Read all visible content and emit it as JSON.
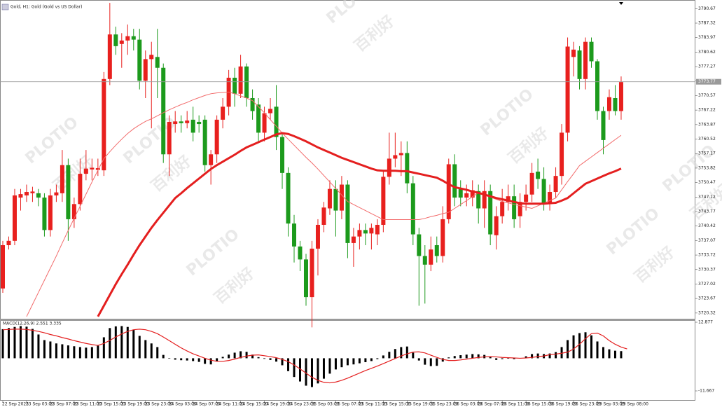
{
  "chart_data": [
    {
      "type": "candlestick",
      "title": "Gold, H1:  Gold (Gold vs US Dollar)",
      "watermark": [
        "PLOTIO",
        "百利好"
      ],
      "up_color": "#e8201e",
      "down_color": "#1c9a1c",
      "ylim": [
        3719,
        3792.34
      ],
      "yticks": [
        3790.67,
        3787.32,
        3783.97,
        3780.62,
        3777.27,
        3773.92,
        3770.57,
        3767.22,
        3763.87,
        3760.52,
        3757.17,
        3753.82,
        3750.47,
        3747.12,
        3743.77,
        3740.42,
        3737.07,
        3733.72,
        3730.37,
        3727.02,
        3723.67,
        3720.32
      ],
      "current_price": 3773.77,
      "categories": [
        "22 Sep 2025",
        null,
        null,
        null,
        "23 Sep 03:00",
        null,
        null,
        null,
        "23 Sep 07:00",
        null,
        null,
        null,
        "23 Sep 11:00",
        null,
        null,
        null,
        "23 Sep 15:00",
        null,
        null,
        null,
        "23 Sep 19:00",
        null,
        null,
        null,
        "23 Sep 23:00",
        null,
        null,
        null,
        "24 Sep 03:00",
        null,
        null,
        null,
        "24 Sep 07:00",
        null,
        null,
        null,
        "24 Sep 11:00",
        null,
        null,
        null,
        "24 Sep 15:00",
        null,
        null,
        null,
        "24 Sep 19:00",
        null,
        null,
        null,
        "24 Sep 23:00",
        null,
        null,
        null,
        "25 Sep 03:00",
        null,
        null,
        null,
        "25 Sep 07:00",
        null,
        null,
        null,
        "25 Sep 11:00",
        null,
        null,
        null,
        "25 Sep 15:00",
        null,
        null,
        null,
        "25 Sep 19:00",
        null,
        null,
        null,
        "25 Sep 23:00",
        null,
        null,
        null,
        "26 Sep 03:00",
        null,
        null,
        null,
        "26 Sep 07:00",
        null,
        null,
        null,
        "26 Sep 11:00",
        null,
        null,
        null,
        "26 Sep 15:00",
        null,
        null,
        null,
        "26 Sep 19:00",
        null,
        null,
        null,
        "26 Sep 23:00",
        null,
        null,
        null,
        "29 Sep 03:00",
        null,
        null,
        null,
        "29 Sep 08:00"
      ],
      "ohlc": [
        [
          3726,
          3737,
          3725,
          3736
        ],
        [
          3736,
          3738,
          3735,
          3737
        ],
        [
          3737,
          3749,
          3736,
          3747.5
        ],
        [
          3747,
          3749,
          3744,
          3747.8
        ],
        [
          3747.5,
          3750,
          3746,
          3748.3
        ],
        [
          3748,
          3749.5,
          3746,
          3748.4
        ],
        [
          3748,
          3749,
          3745,
          3747
        ],
        [
          3747,
          3748,
          3738,
          3739.5
        ],
        [
          3739.5,
          3749,
          3738,
          3747.5
        ],
        [
          3747.5,
          3750,
          3746,
          3748.2
        ],
        [
          3748,
          3758,
          3746,
          3754.5
        ],
        [
          3754.5,
          3756,
          3737,
          3742
        ],
        [
          3742,
          3747,
          3740,
          3745.5
        ],
        [
          3745.5,
          3756,
          3744,
          3752.5
        ],
        [
          3752.5,
          3758,
          3751,
          3753.7
        ],
        [
          3753.5,
          3756,
          3751,
          3753.9
        ],
        [
          3753.4,
          3756,
          3752,
          3753.8
        ],
        [
          3753.3,
          3776,
          3752,
          3774.4
        ],
        [
          3774.4,
          3792,
          3773,
          3784.7
        ],
        [
          3784.7,
          3786.5,
          3780,
          3782
        ],
        [
          3782.5,
          3785,
          3777,
          3783.3
        ],
        [
          3783.3,
          3787,
          3780,
          3784.3
        ],
        [
          3784.3,
          3786,
          3781,
          3783.5
        ],
        [
          3783.5,
          3786,
          3772,
          3774
        ],
        [
          3774,
          3781,
          3770,
          3779
        ],
        [
          3779,
          3783,
          3763,
          3780
        ],
        [
          3779.5,
          3786,
          3770,
          3777
        ],
        [
          3777,
          3778,
          3755,
          3757
        ],
        [
          3757,
          3766,
          3752,
          3764.5
        ],
        [
          3764,
          3767,
          3762,
          3764.6
        ],
        [
          3764.6,
          3766,
          3762,
          3764.2
        ],
        [
          3764.2,
          3767,
          3763,
          3764.8
        ],
        [
          3765,
          3768,
          3760,
          3762
        ],
        [
          3764.5,
          3766,
          3762,
          3764
        ],
        [
          3765,
          3766,
          3753,
          3754.5
        ],
        [
          3754.5,
          3758,
          3750,
          3757
        ],
        [
          3757,
          3766,
          3755,
          3765
        ],
        [
          3765,
          3770,
          3763,
          3768
        ],
        [
          3768,
          3776.5,
          3766,
          3774.7
        ],
        [
          3774.7,
          3777,
          3768,
          3771
        ],
        [
          3771,
          3780,
          3770,
          3777.3
        ],
        [
          3777.3,
          3778,
          3768,
          3770
        ],
        [
          3770,
          3772,
          3765,
          3767
        ],
        [
          3768.5,
          3770,
          3760,
          3762
        ],
        [
          3762,
          3768,
          3760,
          3766.5
        ],
        [
          3766.5,
          3770,
          3765,
          3767.5
        ],
        [
          3768,
          3773,
          3758,
          3761
        ],
        [
          3761,
          3762,
          3749,
          3752.7
        ],
        [
          3752.7,
          3754,
          3738,
          3741
        ],
        [
          3741,
          3743,
          3732,
          3735.7
        ],
        [
          3735.7,
          3737,
          3730,
          3732.7
        ],
        [
          3732.7,
          3734,
          3722,
          3724
        ],
        [
          3724,
          3737,
          3717,
          3735.2
        ],
        [
          3735.2,
          3742,
          3729,
          3740.7
        ],
        [
          3740.7,
          3746,
          3739,
          3744.7
        ],
        [
          3744.5,
          3751,
          3743,
          3749
        ],
        [
          3749,
          3751,
          3738,
          3744
        ],
        [
          3744,
          3752,
          3742,
          3750
        ],
        [
          3750,
          3751,
          3733,
          3736.5
        ],
        [
          3736.5,
          3740,
          3731,
          3738
        ],
        [
          3738,
          3741,
          3735,
          3739.5
        ],
        [
          3739.5,
          3741,
          3736,
          3738.7
        ],
        [
          3738.7,
          3741,
          3735,
          3740
        ],
        [
          3738.5,
          3742,
          3736,
          3740.7
        ],
        [
          3740.7,
          3753,
          3739,
          3751.8
        ],
        [
          3751.8,
          3762,
          3750,
          3756
        ],
        [
          3756,
          3762,
          3754,
          3756.8
        ],
        [
          3756.8,
          3760,
          3752,
          3757.3
        ],
        [
          3757.3,
          3760,
          3748,
          3750.3
        ],
        [
          3750.3,
          3752,
          3736,
          3738.5
        ],
        [
          3738.5,
          3740,
          3722,
          3733.5
        ],
        [
          3733.5,
          3736,
          3722.5,
          3731.5
        ],
        [
          3731.5,
          3738,
          3730,
          3735
        ],
        [
          3736,
          3738,
          3732,
          3733.5
        ],
        [
          3733.5,
          3745,
          3732,
          3742
        ],
        [
          3742,
          3756,
          3741,
          3754.7
        ],
        [
          3754.7,
          3757,
          3745,
          3747
        ],
        [
          3749,
          3751,
          3745,
          3747
        ],
        [
          3747,
          3750,
          3745,
          3748
        ],
        [
          3747,
          3751,
          3745,
          3748.7
        ],
        [
          3748.5,
          3750,
          3741,
          3744.5
        ],
        [
          3744.5,
          3751,
          3740,
          3748.5
        ],
        [
          3748.5,
          3750,
          3736,
          3738.5
        ],
        [
          3738.3,
          3745,
          3735,
          3742.7
        ],
        [
          3742.7,
          3749,
          3741,
          3746
        ],
        [
          3746,
          3750,
          3744,
          3747.3
        ],
        [
          3747.3,
          3750,
          3740,
          3742
        ],
        [
          3742.7,
          3748,
          3740,
          3746
        ],
        [
          3746,
          3750,
          3744,
          3747.7
        ],
        [
          3747.7,
          3755,
          3746,
          3752.7
        ],
        [
          3753,
          3756,
          3749,
          3751.3
        ],
        [
          3751.3,
          3754,
          3744,
          3745.5
        ],
        [
          3745.5,
          3750,
          3744,
          3748.3
        ],
        [
          3748.3,
          3754,
          3747,
          3752
        ],
        [
          3752,
          3764,
          3750,
          3762
        ],
        [
          3762,
          3784,
          3760,
          3781.9
        ],
        [
          3779.5,
          3783,
          3775,
          3781.2
        ],
        [
          3781,
          3782,
          3772,
          3774.4
        ],
        [
          3774.4,
          3784,
          3772,
          3783
        ],
        [
          3783,
          3784,
          3777,
          3778.5
        ],
        [
          3778.5,
          3779,
          3765,
          3767
        ],
        [
          3767,
          3768,
          3757,
          3760.3
        ],
        [
          3767,
          3772,
          3765,
          3770.2
        ],
        [
          3770,
          3773,
          3766,
          3767
        ],
        [
          3767,
          3775,
          3765,
          3773.7
        ]
      ],
      "series": [
        {
          "color": "#f26b6b",
          "width": 1,
          "values": [
            null,
            null,
            null,
            null,
            3719.5,
            3722.3,
            3725.1,
            3727.9,
            3730.7,
            3733.5,
            3736.5,
            3739.4,
            3742.2,
            3745,
            3747.8,
            3750.6,
            3753.3,
            3756,
            3757.6,
            3759.1,
            3760.5,
            3761.8,
            3762.9,
            3763.8,
            3764.6,
            3765.2,
            3765.9,
            3766.6,
            3767.3,
            3767.9,
            3768.5,
            3769,
            3769.6,
            3770.1,
            3770.6,
            3771,
            3771.2,
            3771.3,
            3771.4,
            3771,
            3770.5,
            3770,
            3769.4,
            3768,
            3766.6,
            3765,
            3763.5,
            3761.9,
            3760.5,
            3759.1,
            3757.7,
            3756.3,
            3755,
            3753.6,
            3752.1,
            3750.6,
            3749.1,
            3747.6,
            3746.1,
            3745.4,
            3744.7,
            3744,
            3743.3,
            3742.6,
            3741.9,
            3741.9,
            3741.9,
            3741.9,
            3741.9,
            3741.9,
            3741.9,
            3742.2,
            3742.6,
            3742.9,
            3743.3,
            3743.6,
            3744.5,
            3745.4,
            3746.3,
            3747.2,
            3748.1,
            3747.6,
            3747.1,
            3746.6,
            3746.1,
            3745.8,
            3745.4,
            3745.1,
            3744.8,
            3744.5,
            3745.1,
            3745.7,
            3746.3,
            3746.9,
            3748.8,
            3750.7,
            3752.5,
            3754.4,
            3755.4,
            3756.4,
            3757.4,
            3758.4,
            3759.4,
            3760.4,
            3761.4
          ]
        },
        {
          "color": "#e41f1f",
          "width": 3,
          "values": [
            null,
            null,
            null,
            null,
            null,
            null,
            null,
            null,
            null,
            null,
            null,
            null,
            null,
            null,
            null,
            null,
            3719.5,
            3722,
            3724.5,
            3727,
            3729.3,
            3731.5,
            3733.8,
            3736,
            3738,
            3740,
            3741.8,
            3743.5,
            3745.2,
            3746.9,
            3748,
            3749.2,
            3750.3,
            3751.4,
            3752.5,
            3753.6,
            3754.5,
            3755.3,
            3756.1,
            3756.9,
            3757.8,
            3758.6,
            3759.2,
            3759.8,
            3760.4,
            3761,
            3761.6,
            3761.9,
            3761.7,
            3761.2,
            3760.6,
            3760,
            3759.3,
            3758.6,
            3758,
            3757.4,
            3756.8,
            3756.2,
            3755.7,
            3755.2,
            3754.7,
            3754.2,
            3753.7,
            3753.3,
            3753.2,
            3753.2,
            3753.2,
            3753.1,
            3753.1,
            3752.8,
            3752.5,
            3752.2,
            3751.9,
            3751.6,
            3750.9,
            3750.1,
            3749.4,
            3749.1,
            3748.8,
            3748.4,
            3748.1,
            3747.7,
            3747.3,
            3746.9,
            3746.6,
            3746.3,
            3746,
            3745.7,
            3745.6,
            3745.6,
            3745.6,
            3745.6,
            3745.7,
            3745.8,
            3746.3,
            3746.9,
            3748,
            3749.1,
            3750.2,
            3750.8,
            3751.4,
            3752,
            3752.6,
            3753.1,
            3753.7
          ]
        }
      ]
    },
    {
      "type": "macd",
      "title": "MACD(12,26,9) 2.551 3.335",
      "ylim": [
        -14.67,
        13.38
      ],
      "yticks": [
        12.877,
        -11.667
      ],
      "histogram_color": "#000000",
      "signal_color": "#e41f1f",
      "values": [
        10.4,
        10.8,
        11.2,
        11.5,
        11.3,
        10.5,
        8.5,
        6.5,
        6,
        5.3,
        5,
        4.6,
        4.3,
        4,
        3.8,
        4,
        4.5,
        7.5,
        10.8,
        11.4,
        11.5,
        11.2,
        10.2,
        8,
        6.5,
        5.3,
        4,
        1.2,
        0,
        -0.5,
        -0.7,
        -0.8,
        -1,
        -1.3,
        -2,
        -2.2,
        -1,
        0.5,
        1.3,
        2,
        2.5,
        2.3,
        1.3,
        0.4,
        -0.2,
        -0.6,
        -1.2,
        -2.5,
        -4.6,
        -6.7,
        -8.3,
        -9.8,
        -10.3,
        -9,
        -7.3,
        -5.5,
        -4,
        -3.2,
        -2.5,
        -2.2,
        -1.8,
        -1.4,
        -1,
        -0.3,
        1,
        2.3,
        3.3,
        4,
        4.2,
        2,
        -0.8,
        -2.3,
        -2.8,
        -2.7,
        -1.2,
        0.3,
        0.8,
        1.1,
        1.3,
        1.5,
        1.4,
        1.2,
        0.4,
        -0.6,
        -0.3,
        0,
        -0.3,
        0.1,
        0.7,
        1.5,
        1.7,
        1.5,
        1.7,
        2.2,
        4,
        6.5,
        8.2,
        9,
        9.3,
        8.2,
        6,
        4,
        3.2,
        2.7,
        2.551
      ],
      "signal": [
        10.2,
        10.3,
        10.4,
        10.4,
        10.3,
        10,
        9.6,
        9.1,
        8.5,
        8,
        7.4,
        6.9,
        6.3,
        5.8,
        5.3,
        4.9,
        4.6,
        5.3,
        6.4,
        7.6,
        8.7,
        9.6,
        10.2,
        10.4,
        10.2,
        9.6,
        8.8,
        7.6,
        6.3,
        5,
        3.7,
        2.6,
        1.6,
        0.8,
        0,
        -0.7,
        -1.1,
        -1.1,
        -0.8,
        -0.3,
        0.3,
        0.8,
        1.1,
        1.2,
        0.9,
        0.6,
        0.2,
        -0.4,
        -1.2,
        -2.4,
        -3.8,
        -5.3,
        -6.8,
        -7.9,
        -8.6,
        -8.8,
        -8.5,
        -7.9,
        -7.1,
        -6.2,
        -5.3,
        -4.4,
        -3.6,
        -2.8,
        -1.9,
        -1,
        -0.1,
        0.8,
        1.6,
        2.2,
        2.3,
        1.9,
        1.1,
        0.3,
        -0.4,
        -0.8,
        -0.8,
        -0.6,
        -0.3,
        0,
        0.3,
        0.5,
        0.6,
        0.5,
        0.3,
        0.2,
        0.1,
        0,
        0.1,
        0.3,
        0.6,
        0.8,
        1.3,
        1.5,
        1.8,
        2.2,
        3.3,
        5,
        7,
        8.8,
        9,
        8,
        6.3,
        5,
        4,
        3.335
      ]
    }
  ]
}
